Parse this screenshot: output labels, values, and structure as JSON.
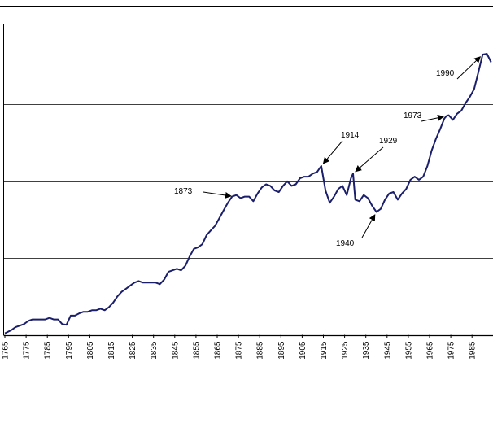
{
  "chart_data": {
    "type": "line",
    "title": "",
    "xlabel": "",
    "ylabel": "",
    "xlim": [
      1765,
      2000
    ],
    "ylim": [
      0,
      4
    ],
    "grid": true,
    "x_tick_labels": [
      "1765",
      "1775",
      "1785",
      "1795",
      "1805",
      "1815",
      "1825",
      "1835",
      "1845",
      "1855",
      "1865",
      "1875",
      "1885",
      "1895",
      "1905",
      "1915",
      "1925",
      "1935",
      "1945",
      "1955",
      "1965",
      "1975",
      "1985"
    ],
    "series": [
      {
        "name": "series",
        "color": "#1b1f6b",
        "x": [
          1765,
          1768,
          1770,
          1772,
          1774,
          1776,
          1778,
          1780,
          1782,
          1784,
          1786,
          1788,
          1790,
          1792,
          1794,
          1796,
          1798,
          1800,
          1802,
          1804,
          1806,
          1808,
          1810,
          1812,
          1814,
          1816,
          1818,
          1820,
          1822,
          1824,
          1826,
          1828,
          1830,
          1832,
          1834,
          1836,
          1838,
          1840,
          1842,
          1844,
          1846,
          1848,
          1850,
          1852,
          1854,
          1856,
          1858,
          1860,
          1862,
          1864,
          1866,
          1868,
          1870,
          1872,
          1874,
          1876,
          1878,
          1880,
          1882,
          1884,
          1886,
          1888,
          1890,
          1892,
          1894,
          1896,
          1898,
          1900,
          1902,
          1904,
          1906,
          1908,
          1910,
          1912,
          1914,
          1916,
          1918,
          1920,
          1922,
          1924,
          1926,
          1928,
          1929,
          1930,
          1932,
          1934,
          1936,
          1938,
          1940,
          1942,
          1944,
          1946,
          1948,
          1950,
          1952,
          1954,
          1956,
          1958,
          1960,
          1962,
          1964,
          1966,
          1968,
          1970,
          1972,
          1973,
          1974,
          1976,
          1978,
          1980,
          1982,
          1984,
          1986,
          1988,
          1990,
          1992,
          1994
        ],
        "values": [
          0.02,
          0.06,
          0.1,
          0.12,
          0.14,
          0.18,
          0.2,
          0.2,
          0.2,
          0.2,
          0.22,
          0.2,
          0.2,
          0.14,
          0.13,
          0.25,
          0.25,
          0.28,
          0.3,
          0.3,
          0.32,
          0.32,
          0.34,
          0.32,
          0.36,
          0.42,
          0.5,
          0.56,
          0.6,
          0.64,
          0.68,
          0.7,
          0.68,
          0.68,
          0.68,
          0.68,
          0.66,
          0.72,
          0.82,
          0.84,
          0.86,
          0.84,
          0.9,
          1.02,
          1.12,
          1.14,
          1.18,
          1.3,
          1.36,
          1.42,
          1.52,
          1.62,
          1.72,
          1.8,
          1.82,
          1.78,
          1.8,
          1.8,
          1.74,
          1.84,
          1.92,
          1.96,
          1.94,
          1.88,
          1.86,
          1.94,
          2.0,
          1.94,
          1.96,
          2.04,
          2.06,
          2.06,
          2.1,
          2.12,
          2.2,
          1.88,
          1.72,
          1.8,
          1.9,
          1.94,
          1.82,
          2.04,
          2.1,
          1.76,
          1.74,
          1.82,
          1.78,
          1.68,
          1.6,
          1.64,
          1.76,
          1.84,
          1.86,
          1.76,
          1.84,
          1.9,
          2.02,
          2.06,
          2.02,
          2.06,
          2.2,
          2.4,
          2.55,
          2.68,
          2.82,
          2.85,
          2.86,
          2.8,
          2.88,
          2.92,
          3.02,
          3.1,
          3.2,
          3.42,
          3.65,
          3.66,
          3.55
        ]
      }
    ],
    "annotations": [
      {
        "label": "1873",
        "x": 1873,
        "y": 1.8
      },
      {
        "label": "1914",
        "x": 1914,
        "y": 2.2
      },
      {
        "label": "1929",
        "x": 1929,
        "y": 2.1
      },
      {
        "label": "1940",
        "x": 1940,
        "y": 1.6
      },
      {
        "label": "1973",
        "x": 1973,
        "y": 2.85
      },
      {
        "label": "1990",
        "x": 1990,
        "y": 3.65
      }
    ]
  }
}
